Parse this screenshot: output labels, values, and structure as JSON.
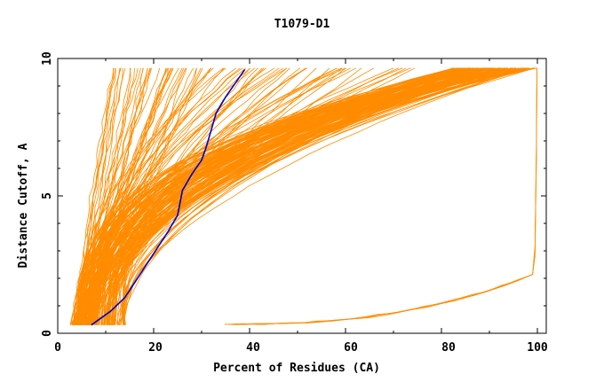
{
  "chart_data": {
    "type": "line",
    "title": "T1079-D1",
    "xlabel": "Percent of Residues (CA)",
    "ylabel": "Distance Cutoff, A",
    "xlim": [
      0,
      100
    ],
    "ylim": [
      0,
      10
    ],
    "x_ticks": [
      "0",
      "20",
      "40",
      "60",
      "80",
      "100"
    ],
    "y_ticks": [
      "0",
      "5",
      "10"
    ],
    "grid": false,
    "colors": {
      "models": "#ff8c00",
      "highlight": "#0000cd"
    },
    "highlight_series": {
      "x": [
        7,
        11,
        14,
        17,
        20,
        23,
        25,
        26,
        28,
        30,
        31,
        32,
        33,
        35,
        37,
        39
      ],
      "y": [
        0.3,
        0.8,
        1.3,
        2.1,
        2.9,
        3.7,
        4.3,
        5.2,
        5.8,
        6.3,
        6.8,
        7.4,
        8.0,
        8.6,
        9.1,
        9.6
      ]
    }
  }
}
